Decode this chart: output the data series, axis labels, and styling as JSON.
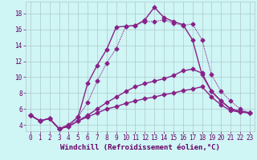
{
  "xlabel": "Windchill (Refroidissement éolien,°C)",
  "background_color": "#cff5f5",
  "grid_color": "#b0c8c8",
  "line_color": "#882288",
  "xlim": [
    -0.5,
    23.5
  ],
  "ylim": [
    3.2,
    19.5
  ],
  "xticks": [
    0,
    1,
    2,
    3,
    4,
    5,
    6,
    7,
    8,
    9,
    10,
    11,
    12,
    13,
    14,
    15,
    16,
    17,
    18,
    19,
    20,
    21,
    22,
    23
  ],
  "yticks": [
    4,
    6,
    8,
    10,
    12,
    14,
    16,
    18
  ],
  "line1_x": [
    0,
    1,
    2,
    3,
    4,
    5,
    6,
    7,
    8,
    9,
    10,
    11,
    12,
    13,
    14,
    15,
    16,
    17,
    18,
    19,
    20,
    21,
    22,
    23
  ],
  "line1_y": [
    5.2,
    4.5,
    4.8,
    3.5,
    4.0,
    5.0,
    9.2,
    11.5,
    13.5,
    16.3,
    16.4,
    16.5,
    17.2,
    18.8,
    17.5,
    17.0,
    16.6,
    14.7,
    10.3,
    8.2,
    7.0,
    6.0,
    5.7,
    5.5
  ],
  "line2_x": [
    0,
    1,
    2,
    3,
    4,
    5,
    6,
    7,
    8,
    9,
    10,
    11,
    12,
    13,
    14,
    15,
    16,
    17,
    18,
    19,
    20,
    21,
    22,
    23
  ],
  "line2_y": [
    5.2,
    4.5,
    4.8,
    3.5,
    3.8,
    5.0,
    6.8,
    9.5,
    11.8,
    13.6,
    16.4,
    16.5,
    17.0,
    17.0,
    17.2,
    16.8,
    16.5,
    16.7,
    14.7,
    10.3,
    8.2,
    7.0,
    6.0,
    5.5
  ],
  "line3_x": [
    0,
    1,
    2,
    3,
    4,
    5,
    6,
    7,
    8,
    9,
    10,
    11,
    12,
    13,
    14,
    15,
    16,
    17,
    18,
    19,
    20,
    21,
    22,
    23
  ],
  "line3_y": [
    5.2,
    4.5,
    4.8,
    3.5,
    3.8,
    4.5,
    5.2,
    6.0,
    6.8,
    7.5,
    8.2,
    8.8,
    9.2,
    9.5,
    9.8,
    10.2,
    10.8,
    11.0,
    10.5,
    8.2,
    7.0,
    6.0,
    5.7,
    5.5
  ],
  "line4_x": [
    0,
    1,
    2,
    3,
    4,
    5,
    6,
    7,
    8,
    9,
    10,
    11,
    12,
    13,
    14,
    15,
    16,
    17,
    18,
    19,
    20,
    21,
    22,
    23
  ],
  "line4_y": [
    5.2,
    4.5,
    4.8,
    3.5,
    3.8,
    4.5,
    5.0,
    5.5,
    6.0,
    6.3,
    6.7,
    7.0,
    7.3,
    7.5,
    7.8,
    8.0,
    8.3,
    8.5,
    8.8,
    7.5,
    6.5,
    5.8,
    5.6,
    5.5
  ],
  "marker": "D",
  "markersize": 2.5,
  "linewidth": 1.0,
  "font_color": "#660066",
  "tick_fontsize": 5.5,
  "xlabel_fontsize": 6.5
}
